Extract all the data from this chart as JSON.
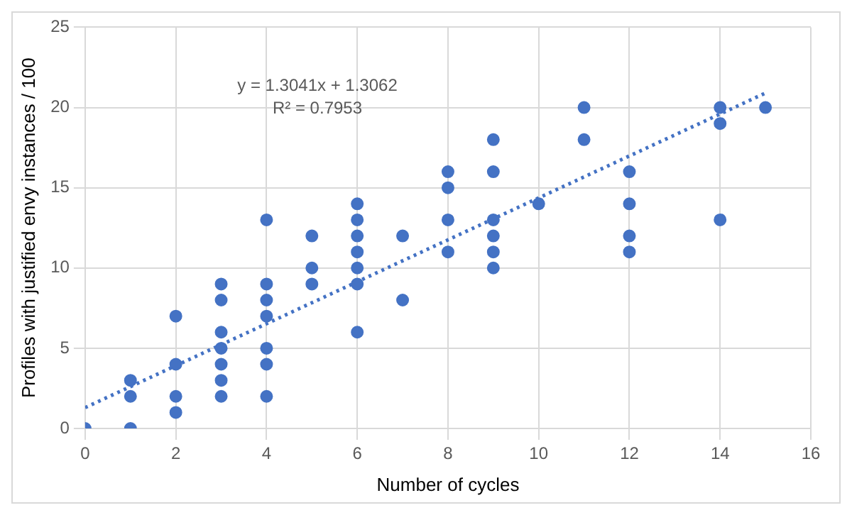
{
  "chart_data": {
    "type": "scatter",
    "xlabel": "Number of cycles",
    "ylabel": "Profiles with justified envy instances / 100",
    "annotations": [
      "y = 1.3041x + 1.3062",
      "R² = 0.7953"
    ],
    "xlim": [
      0,
      16
    ],
    "xticks": [
      0,
      2,
      4,
      6,
      8,
      10,
      12,
      14,
      16
    ],
    "ylim": [
      0,
      25
    ],
    "yticks": [
      0,
      5,
      10,
      15,
      20,
      25
    ],
    "grid": true,
    "legend": false,
    "series": [
      {
        "type": "scatter",
        "color": "#4472c4",
        "marker": "circle",
        "x": [
          0,
          1,
          1,
          1,
          2,
          2,
          2,
          2,
          3,
          3,
          3,
          3,
          3,
          3,
          3,
          4,
          4,
          4,
          4,
          4,
          4,
          4,
          5,
          5,
          5,
          6,
          6,
          6,
          6,
          6,
          6,
          6,
          7,
          7,
          8,
          8,
          8,
          8,
          9,
          9,
          9,
          9,
          9,
          9,
          10,
          11,
          11,
          12,
          12,
          12,
          12,
          14,
          14,
          14,
          15
        ],
        "values": [
          0,
          3,
          2,
          0,
          7,
          4,
          2,
          1,
          9,
          8,
          6,
          5,
          4,
          3,
          2,
          13,
          9,
          8,
          7,
          5,
          4,
          2,
          12,
          10,
          9,
          14,
          13,
          12,
          11,
          10,
          9,
          6,
          12,
          8,
          16,
          15,
          13,
          11,
          18,
          16,
          13,
          12,
          11,
          10,
          14,
          20,
          18,
          16,
          14,
          12,
          11,
          20,
          19,
          13,
          20
        ]
      },
      {
        "type": "line",
        "color": "#4472c4",
        "marker": "none",
        "line_style": "dotted",
        "x": [
          0,
          15
        ],
        "values": [
          1.3,
          20.9
        ]
      }
    ]
  }
}
